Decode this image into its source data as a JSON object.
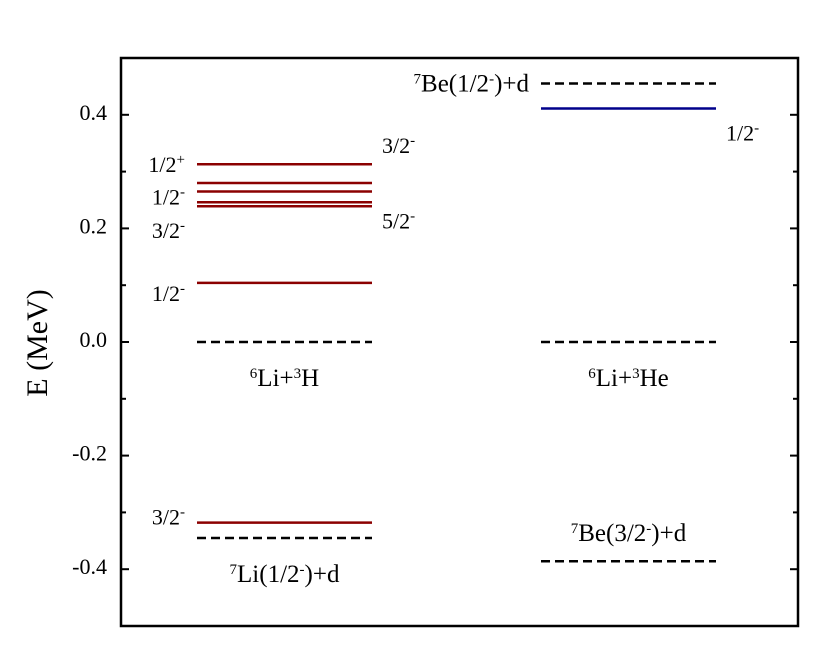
{
  "chart_data": {
    "type": "energy_level",
    "y_label": "E (MeV)",
    "ylim": [
      -0.5,
      0.5
    ],
    "yticks": [
      -0.4,
      -0.2,
      {
        "value": 0,
        "label": "0.0"
      },
      0.2,
      0.4
    ],
    "yminorticks": [
      -0.5,
      -0.3,
      -0.1,
      0.1,
      0.3,
      0.5
    ],
    "columns": [
      {
        "levels": [
          {
            "energy": 0.313,
            "style": "solid",
            "color": "#8b0000",
            "label": [
              "1/2",
              {
                "sup": "+"
              }
            ],
            "label_position": "left"
          },
          {
            "energy": 0.28,
            "style": "solid",
            "color": "#8b0000",
            "label": [
              "3/2",
              {
                "sup": "-"
              }
            ],
            "label_position": "right"
          },
          {
            "energy": 0.265,
            "style": "solid",
            "color": "#8b0000",
            "label": [
              "1/2",
              {
                "sup": "-"
              }
            ],
            "label_position": "left"
          },
          {
            "energy": 0.246,
            "style": "solid",
            "color": "#8b0000",
            "label": [
              "5/2",
              {
                "sup": "-"
              }
            ],
            "label_position": "right"
          },
          {
            "energy": 0.239,
            "style": "solid",
            "color": "#8b0000",
            "label": [
              "3/2",
              {
                "sup": "-"
              }
            ],
            "label_position": "left"
          },
          {
            "energy": 0.104,
            "style": "solid",
            "color": "#8b0000",
            "label": [
              "1/2",
              {
                "sup": "-"
              }
            ],
            "label_position": "left"
          },
          {
            "energy": 0.0,
            "style": "dashed",
            "color": "#000000",
            "label": [
              {
                "sup": "6"
              },
              "Li+",
              {
                "sup": "3"
              },
              "H"
            ],
            "label_position": "below"
          },
          {
            "energy": -0.318,
            "style": "solid",
            "color": "#8b0000",
            "label": [
              "3/2",
              {
                "sup": "-"
              }
            ],
            "label_position": "left"
          },
          {
            "energy": -0.345,
            "style": "dashed",
            "color": "#000000",
            "label": [
              {
                "sup": "7"
              },
              "Li(1/2",
              {
                "sup": "-"
              },
              ")+d"
            ],
            "label_position": "below"
          }
        ]
      },
      {
        "levels": [
          {
            "energy": 0.455,
            "style": "dashed",
            "color": "#000000",
            "label": [
              {
                "sup": "7"
              },
              "Be(1/2",
              {
                "sup": "-"
              },
              ")+d"
            ],
            "label_position": "left"
          },
          {
            "energy": 0.411,
            "style": "solid",
            "color": "#00008b",
            "label": [
              "1/2",
              {
                "sup": "-"
              }
            ],
            "label_position": "right"
          },
          {
            "energy": 0.0,
            "style": "dashed",
            "color": "#000000",
            "label": [
              {
                "sup": "6"
              },
              "Li+",
              {
                "sup": "3"
              },
              "He"
            ],
            "label_position": "below"
          },
          {
            "energy": -0.386,
            "style": "dashed",
            "color": "#000000",
            "label": [
              {
                "sup": "7"
              },
              "Be(3/2",
              {
                "sup": "-"
              },
              ")+d"
            ],
            "label_position": "above"
          }
        ]
      }
    ]
  }
}
